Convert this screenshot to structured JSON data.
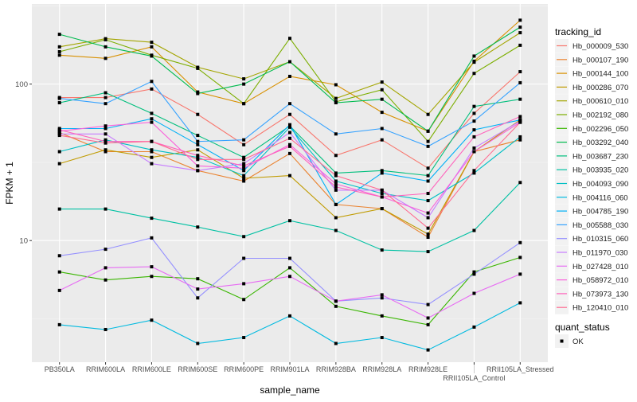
{
  "chart_data": {
    "type": "line",
    "xlabel": "sample_name",
    "ylabel": "FPKM + 1",
    "y_scale": "log10",
    "ylim": [
      1.67,
      325
    ],
    "y_ticks": [
      10,
      100
    ],
    "y_tick_labels": [
      "10",
      "100"
    ],
    "grid": true,
    "legend_position": "right",
    "categories": [
      "PB350LA",
      "RRIM600LA",
      "RRIM600LE",
      "RRIM600SE",
      "RRIM600PE",
      "RRIM901LA",
      "RRIM928BA",
      "RRIM928LA",
      "RRIM928LE",
      "RRII105LA_Control",
      "RRII105LA_Stressed"
    ],
    "legend_title": "tracking_id",
    "series": [
      {
        "name": "Hb_000009_530",
        "color": "#F8766D",
        "values": [
          82,
          82,
          93,
          64,
          41,
          64,
          35,
          44,
          29,
          65,
          120
        ]
      },
      {
        "name": "Hb_000107_190",
        "color": "#EA8331",
        "values": [
          49,
          37,
          37,
          28,
          24,
          36,
          17,
          16,
          10.5,
          37,
          44
        ]
      },
      {
        "name": "Hb_000144_100",
        "color": "#D89000",
        "values": [
          153,
          146,
          173,
          89,
          75,
          112,
          99,
          66,
          50,
          140,
          256
        ]
      },
      {
        "name": "Hb_000286_070",
        "color": "#C09B00",
        "values": [
          31,
          38,
          34,
          38,
          25,
          26,
          14,
          16,
          11,
          37,
          59
        ]
      },
      {
        "name": "Hb_000610_010",
        "color": "#A3A500",
        "values": [
          173,
          195,
          185,
          128,
          108,
          139,
          81,
          103,
          64,
          138,
          213
        ]
      },
      {
        "name": "Hb_002192_080",
        "color": "#7CAE00",
        "values": [
          161,
          192,
          153,
          126,
          75,
          196,
          77,
          92,
          43,
          117,
          177
        ]
      },
      {
        "name": "Hb_002296_050",
        "color": "#39B600",
        "values": [
          6.3,
          5.6,
          5.9,
          5.7,
          4.2,
          6.7,
          3.8,
          3.3,
          2.9,
          6.3,
          7.8
        ]
      },
      {
        "name": "Hb_003292_040",
        "color": "#00BB4E",
        "values": [
          208,
          173,
          151,
          87,
          100,
          139,
          76,
          80,
          50,
          151,
          231
        ]
      },
      {
        "name": "Hb_003687_230",
        "color": "#00BF7D",
        "values": [
          76,
          88,
          65,
          47,
          34,
          54,
          27,
          28,
          26,
          72,
          80
        ]
      },
      {
        "name": "Hb_003935_020",
        "color": "#00C1A3",
        "values": [
          15.9,
          15.9,
          13.9,
          12.2,
          10.6,
          13.4,
          11.6,
          8.7,
          8.5,
          11.6,
          23.5
        ]
      },
      {
        "name": "Hb_004093_090",
        "color": "#00BFC4",
        "values": [
          37,
          44,
          38,
          34,
          26,
          53,
          24,
          20,
          18,
          27,
          46
        ]
      },
      {
        "name": "Hb_004116_060",
        "color": "#00BAE0",
        "values": [
          2.9,
          2.7,
          3.1,
          2.2,
          2.4,
          3.3,
          2.2,
          2.4,
          2.0,
          2.8,
          4.0
        ]
      },
      {
        "name": "Hb_004785_190",
        "color": "#00B0F6",
        "values": [
          52,
          52,
          60,
          41,
          28,
          55,
          17,
          27,
          24,
          51,
          59
        ]
      },
      {
        "name": "Hb_005588_030",
        "color": "#35A2FF",
        "values": [
          81,
          75,
          104,
          43,
          44,
          75,
          48,
          52,
          40,
          58,
          102
        ]
      },
      {
        "name": "Hb_010315_060",
        "color": "#9590FF",
        "values": [
          8.0,
          8.8,
          10.4,
          4.3,
          7.7,
          7.7,
          4.1,
          4.3,
          3.9,
          6.1,
          9.7
        ]
      },
      {
        "name": "Hb_011970_030",
        "color": "#C77CFF",
        "values": [
          48,
          48,
          31,
          28,
          31,
          49,
          21,
          21,
          14,
          39,
          58
        ]
      },
      {
        "name": "Hb_027428_010",
        "color": "#E76BF3",
        "values": [
          4.8,
          6.7,
          6.8,
          4.9,
          5.3,
          5.9,
          4.1,
          4.5,
          3.2,
          4.6,
          6.1
        ]
      },
      {
        "name": "Hb_058972_010",
        "color": "#FA62DB",
        "values": [
          50,
          54,
          57,
          30,
          29,
          41,
          23,
          19,
          15,
          37,
          57
        ]
      },
      {
        "name": "Hb_073973_130",
        "color": "#FF62BC",
        "values": [
          51,
          43,
          43,
          35,
          30,
          40,
          22,
          19,
          20,
          46,
          62
        ]
      },
      {
        "name": "Hb_120410_010",
        "color": "#FF6C91",
        "values": [
          47,
          42,
          43,
          33,
          33,
          45,
          26,
          21,
          12,
          28,
          57
        ]
      }
    ],
    "shape_legend_title": "quant_status",
    "shape_legend_items": [
      "OK"
    ]
  }
}
